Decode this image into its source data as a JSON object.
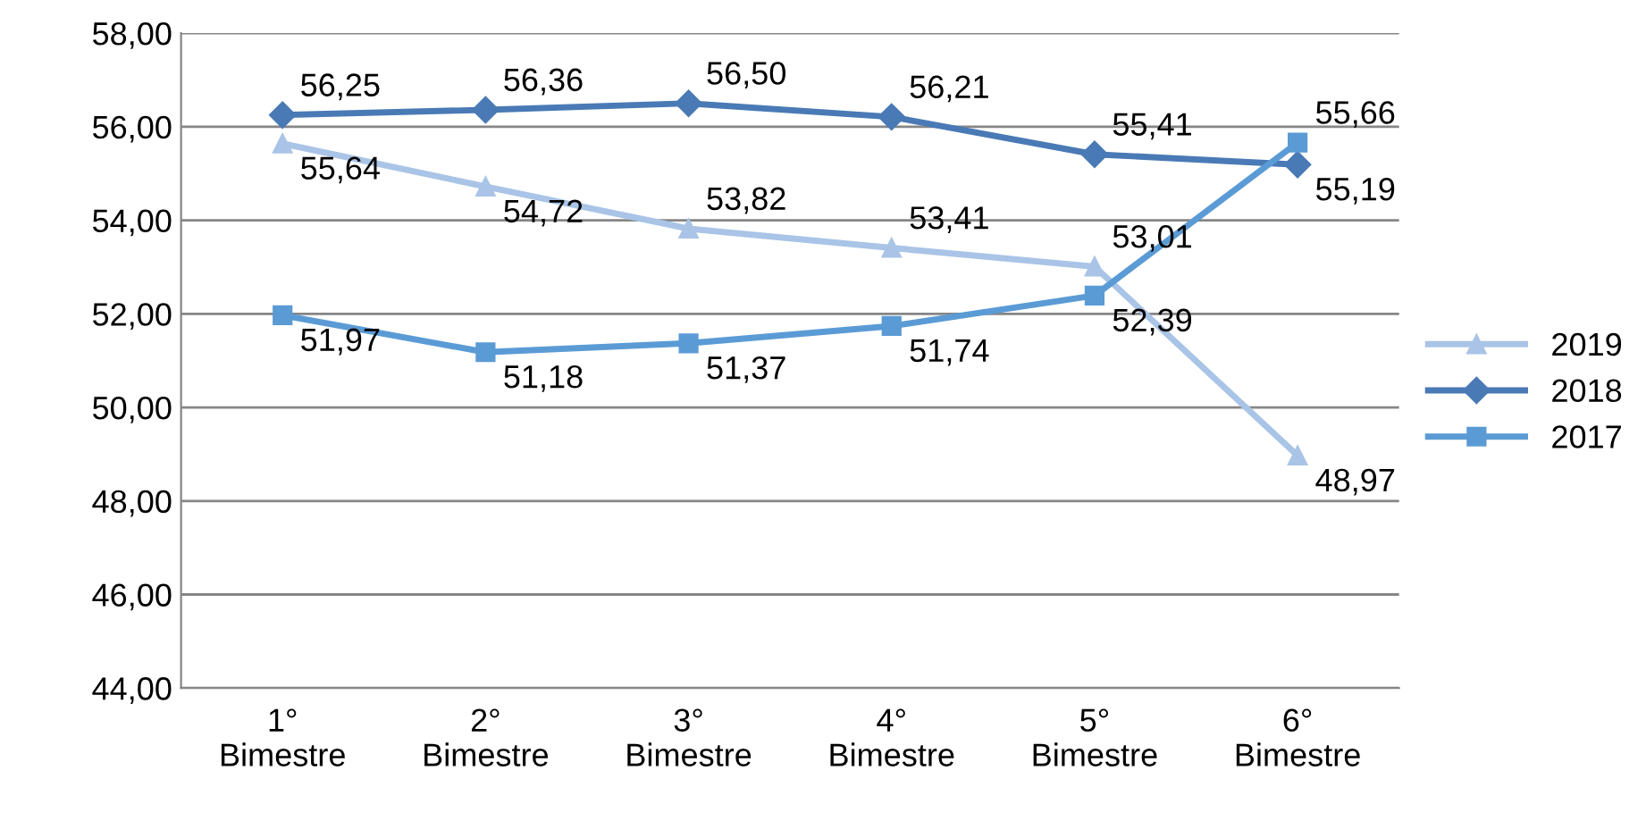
{
  "chart_data": {
    "type": "line",
    "categories": [
      "1°\nBimestre",
      "2°\nBimestre",
      "3°\nBimestre",
      "4°\nBimestre",
      "5°\nBimestre",
      "6°\nBimestre"
    ],
    "series": [
      {
        "name": "2019",
        "color": "#a9c4e6",
        "marker": "triangle",
        "values": [
          55.64,
          54.72,
          53.82,
          53.41,
          53.01,
          48.97
        ],
        "value_labels": [
          "55,64",
          "54,72",
          "53,82",
          "53,41",
          "53,01",
          "48,97"
        ]
      },
      {
        "name": "2018",
        "color": "#4a7ab5",
        "marker": "diamond",
        "values": [
          56.25,
          56.36,
          56.5,
          56.21,
          55.41,
          55.19
        ],
        "value_labels": [
          "56,25",
          "56,36",
          "56,50",
          "56,21",
          "55,41",
          "55,19"
        ]
      },
      {
        "name": "2017",
        "color": "#5b9bd5",
        "marker": "square",
        "values": [
          51.97,
          51.18,
          51.37,
          51.74,
          52.39,
          55.66
        ],
        "value_labels": [
          "51,97",
          "51,18",
          "51,37",
          "51,74",
          "52,39",
          "55,66"
        ]
      }
    ],
    "ylim": [
      44,
      58
    ],
    "yticks": [
      {
        "value": 44,
        "label": "44,00"
      },
      {
        "value": 46,
        "label": "46,00"
      },
      {
        "value": 48,
        "label": "48,00"
      },
      {
        "value": 50,
        "label": "50,00"
      },
      {
        "value": 52,
        "label": "52,00"
      },
      {
        "value": 54,
        "label": "54,00"
      },
      {
        "value": 56,
        "label": "56,00"
      },
      {
        "value": 58,
        "label": "58,00"
      }
    ],
    "grid": "y",
    "legend": "right",
    "line_style": "solid"
  }
}
